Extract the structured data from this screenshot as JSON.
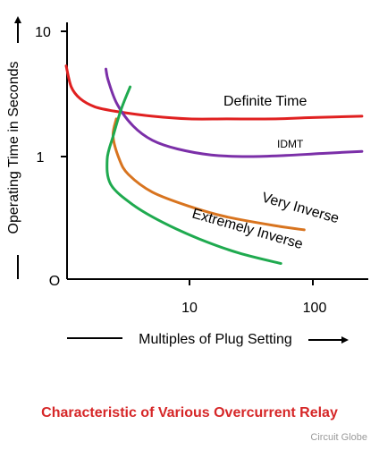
{
  "chart_data": {
    "type": "line",
    "title": "Characteristic of Various Overcurrent Relay",
    "xlabel": "Multiples of Plug Setting",
    "ylabel": "Operating Time in Seconds",
    "x_scale": "log",
    "y_scale": "log",
    "x_ticks": [
      "10",
      "100"
    ],
    "y_ticks": [
      "10",
      "1"
    ],
    "origin_label": "O",
    "grid": false,
    "legend": "none; series labeled directly on the curves",
    "series": [
      {
        "name": "Definite Time",
        "color": "#e02020",
        "points": [
          [
            1.0,
            5.3
          ],
          [
            1.1,
            3.6
          ],
          [
            1.3,
            2.9
          ],
          [
            1.7,
            2.5
          ],
          [
            2.5,
            2.3
          ],
          [
            5,
            2.1
          ],
          [
            10,
            2.0
          ],
          [
            20,
            2.0
          ],
          [
            50,
            2.0
          ],
          [
            100,
            2.05
          ],
          [
            250,
            2.1
          ]
        ]
      },
      {
        "name": "IDMT",
        "color": "#7b2fa8",
        "points": [
          [
            2.1,
            5.0
          ],
          [
            2.2,
            4.0
          ],
          [
            2.6,
            2.6
          ],
          [
            3.5,
            1.75
          ],
          [
            5,
            1.35
          ],
          [
            8,
            1.15
          ],
          [
            15,
            1.03
          ],
          [
            30,
            1.0
          ],
          [
            60,
            1.02
          ],
          [
            120,
            1.06
          ],
          [
            250,
            1.1
          ]
        ]
      },
      {
        "name": "Very Inverse",
        "color": "#d8741f",
        "points": [
          [
            2.55,
            2.0
          ],
          [
            2.4,
            1.45
          ],
          [
            2.7,
            0.95
          ],
          [
            3.2,
            0.72
          ],
          [
            5,
            0.52
          ],
          [
            10,
            0.4
          ],
          [
            20,
            0.33
          ],
          [
            50,
            0.28
          ],
          [
            85,
            0.26
          ]
        ]
      },
      {
        "name": "Extremely Inverse",
        "color": "#1faa4f",
        "points": [
          [
            3.3,
            3.6
          ],
          [
            2.8,
            2.4
          ],
          [
            2.4,
            1.45
          ],
          [
            2.15,
            0.95
          ],
          [
            2.3,
            0.6
          ],
          [
            3.5,
            0.41
          ],
          [
            6,
            0.3
          ],
          [
            12,
            0.22
          ],
          [
            25,
            0.17
          ],
          [
            55,
            0.14
          ]
        ]
      }
    ],
    "watermark": "Circuit Globe"
  }
}
